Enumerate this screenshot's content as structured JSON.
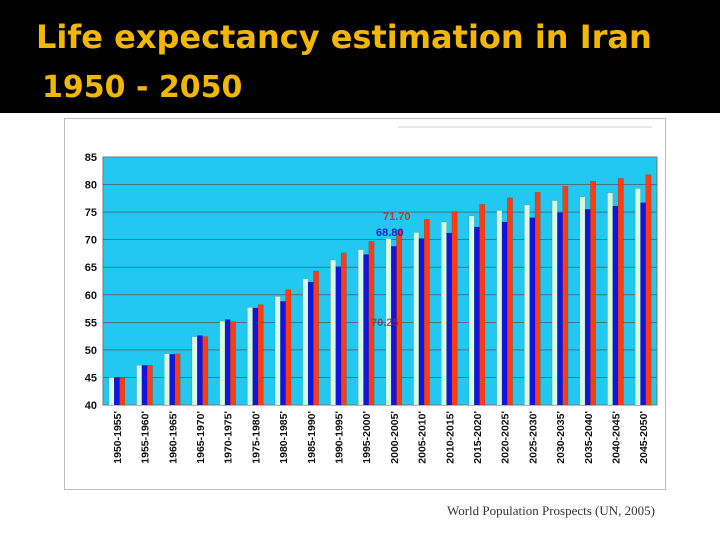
{
  "slide": {
    "title_line1": "Life expectancy estimation in Iran",
    "title_line2": "1950 - 2050",
    "source": "World Population Prospects (UN, 2005)"
  },
  "colors": {
    "title": "#f2b705",
    "plot_background": "#22c8f0",
    "series_total": "#d9fbe1",
    "series_male": "#1414e0",
    "series_female": "#ff3b10",
    "annotation_red": "#cc3333",
    "annotation_blue": "#2222cc"
  },
  "chart_data": {
    "type": "bar",
    "title": "",
    "xlabel": "",
    "ylabel": "",
    "ylim": [
      40,
      85
    ],
    "yticks": [
      40,
      45,
      50,
      55,
      60,
      65,
      70,
      75,
      80,
      85
    ],
    "grid": true,
    "legend": "none",
    "categories": [
      "1950-1955'",
      "1955-1960'",
      "1960-1965'",
      "1965-1970'",
      "1970-1975'",
      "1975-1980'",
      "1980-1985'",
      "1985-1990'",
      "1990-1995'",
      "1995-2000'",
      "2000-2005'",
      "2005-2010'",
      "2010-2015'",
      "2015-2020'",
      "2020-2025'",
      "2025-2030'",
      "2030-2035'",
      "2035-2040'",
      "2040-2045'",
      "2045-2050'"
    ],
    "series": [
      {
        "values": [
          45.0,
          47.2,
          49.3,
          52.4,
          55.2,
          57.7,
          59.7,
          62.9,
          66.3,
          68.2,
          70.2,
          71.3,
          73.2,
          74.3,
          75.3,
          76.3,
          77.1,
          77.8,
          78.5,
          79.3
        ]
      },
      {
        "values": [
          45.0,
          47.2,
          49.2,
          52.6,
          55.5,
          57.6,
          58.8,
          62.3,
          65.1,
          67.3,
          68.8,
          70.2,
          71.2,
          72.3,
          73.2,
          74.0,
          74.9,
          75.5,
          76.1,
          76.7
        ]
      },
      {
        "values": [
          44.9,
          47.2,
          49.3,
          52.4,
          55.1,
          58.2,
          60.9,
          64.3,
          67.6,
          69.7,
          71.7,
          73.7,
          75.1,
          76.4,
          77.6,
          78.6,
          79.7,
          80.6,
          81.1,
          81.8
        ]
      }
    ],
    "annotations": [
      {
        "text": "71.70"
      },
      {
        "text": "68.80"
      },
      {
        "text": "70.25"
      }
    ]
  }
}
